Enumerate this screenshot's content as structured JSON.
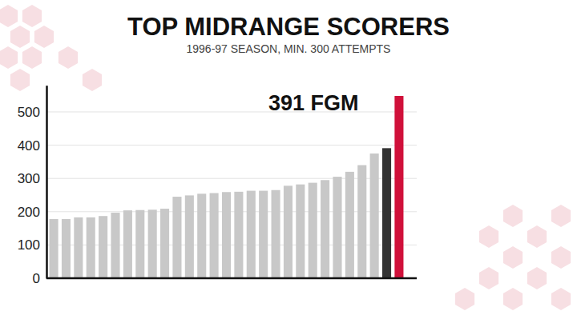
{
  "chart_data": {
    "type": "bar",
    "title": "TOP MIDRANGE SCORERS",
    "subtitle": "1996-97 SEASON, MIN. 300 ATTEMPTS",
    "annotation": "391 FGM",
    "categories": [
      null,
      null,
      null,
      null,
      null,
      null,
      null,
      null,
      null,
      null,
      null,
      null,
      null,
      null,
      null,
      null,
      null,
      null,
      null,
      null,
      null,
      null,
      null,
      null,
      null,
      null,
      null,
      null,
      null
    ],
    "values": [
      178,
      178,
      183,
      183,
      187,
      197,
      204,
      205,
      206,
      209,
      245,
      249,
      254,
      256,
      259,
      260,
      263,
      263,
      265,
      278,
      282,
      287,
      295,
      305,
      320,
      340,
      375,
      391,
      548
    ],
    "colors": [
      "#c8c8c8",
      "#c8c8c8",
      "#c8c8c8",
      "#c8c8c8",
      "#c8c8c8",
      "#c8c8c8",
      "#c8c8c8",
      "#c8c8c8",
      "#c8c8c8",
      "#c8c8c8",
      "#c8c8c8",
      "#c8c8c8",
      "#c8c8c8",
      "#c8c8c8",
      "#c8c8c8",
      "#c8c8c8",
      "#c8c8c8",
      "#c8c8c8",
      "#c8c8c8",
      "#c8c8c8",
      "#c8c8c8",
      "#c8c8c8",
      "#c8c8c8",
      "#c8c8c8",
      "#c8c8c8",
      "#c8c8c8",
      "#c8c8c8",
      "#333333",
      "#d0103a"
    ],
    "ylim": [
      0,
      580
    ],
    "yticks": [
      0,
      100,
      200,
      300,
      400,
      500
    ],
    "grid": true,
    "tick_labels": "y"
  }
}
